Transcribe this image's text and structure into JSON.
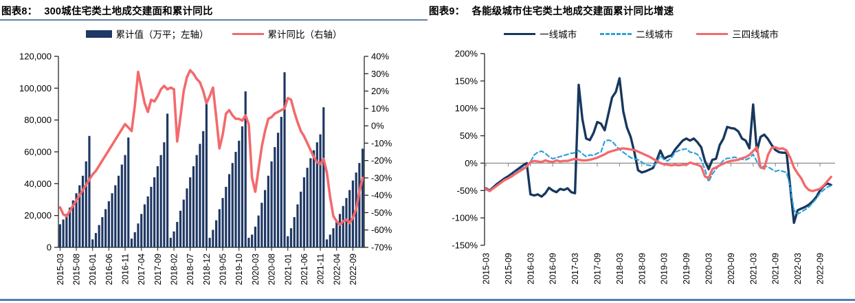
{
  "left_panel": {
    "tag": "图表8：",
    "title": "300城住宅类土地成交建面和累计同比",
    "legend": {
      "bars": "累计值（万平；左轴）",
      "line": "累计同比（右轴）"
    }
  },
  "right_panel": {
    "tag": "图表9：",
    "title": "各能级城市住宅类土地成交建面累计同比增速",
    "legend": {
      "tier1": "一线城市",
      "tier2": "二线城市",
      "tier34": "三四线城市"
    }
  },
  "colors": {
    "navy": "#1f3864",
    "navy_line": "#17375e",
    "red": "#f4696c",
    "cyan_dashed": "#2da0da",
    "axis": "#262626",
    "zero_line": "#7f7f7f",
    "header_rule": "#5d82a8",
    "bottom_rule": "#4a7ebb"
  },
  "chart_data": [
    {
      "type": "bar",
      "title": "300城住宅类土地成交建面和累计同比",
      "legend_position": "top",
      "grid": false,
      "x": [
        "2015-03",
        "2015-04",
        "2015-05",
        "2015-06",
        "2015-07",
        "2015-08",
        "2015-09",
        "2015-10",
        "2015-11",
        "2015-12",
        "2016-01",
        "2016-02",
        "2016-03",
        "2016-04",
        "2016-05",
        "2016-06",
        "2016-07",
        "2016-08",
        "2016-09",
        "2016-10",
        "2016-11",
        "2016-12",
        "2017-01",
        "2017-02",
        "2017-03",
        "2017-04",
        "2017-05",
        "2017-06",
        "2017-07",
        "2017-08",
        "2017-09",
        "2017-10",
        "2017-11",
        "2017-12",
        "2018-01",
        "2018-02",
        "2018-03",
        "2018-04",
        "2018-05",
        "2018-06",
        "2018-07",
        "2018-08",
        "2018-09",
        "2018-10",
        "2018-11",
        "2018-12",
        "2019-01",
        "2019-02",
        "2019-03",
        "2019-04",
        "2019-05",
        "2019-06",
        "2019-07",
        "2019-08",
        "2019-09",
        "2019-10",
        "2019-11",
        "2019-12",
        "2020-01",
        "2020-02",
        "2020-03",
        "2020-04",
        "2020-05",
        "2020-06",
        "2020-07",
        "2020-08",
        "2020-09",
        "2020-10",
        "2020-11",
        "2020-12",
        "2021-01",
        "2021-02",
        "2021-03",
        "2021-04",
        "2021-05",
        "2021-06",
        "2021-07",
        "2021-08",
        "2021-09",
        "2021-10",
        "2021-11",
        "2021-12",
        "2022-01",
        "2022-02",
        "2022-03",
        "2022-04",
        "2022-05",
        "2022-06",
        "2022-07",
        "2022-08",
        "2022-09",
        "2022-10",
        "2022-11",
        "2022-12"
      ],
      "x_tick_labels": [
        "2015-03",
        "2015-08",
        "2016-01",
        "2016-06",
        "2016-11",
        "2017-04",
        "2017-09",
        "2018-02",
        "2018-07",
        "2018-12",
        "2019-05",
        "2019-10",
        "2020-03",
        "2020-08",
        "2021-01",
        "2021-06",
        "2021-11",
        "2022-04",
        "2022-09"
      ],
      "x_tick_every": 5,
      "left_axis": {
        "min": 0,
        "max": 120000,
        "step": 20000,
        "tick_labels": [
          "0",
          "20,000",
          "40,000",
          "60,000",
          "80,000",
          "100,000",
          "120,000"
        ]
      },
      "right_axis": {
        "min": -70,
        "max": 40,
        "step": 10,
        "unit": "%",
        "tick_labels": [
          "-70%",
          "-60%",
          "-50%",
          "-40%",
          "-30%",
          "-20%",
          "-10%",
          "0%",
          "10%",
          "20%",
          "30%",
          "40%"
        ]
      },
      "series": [
        {
          "name": "累计值（万平；左轴）",
          "kind": "bar",
          "axis": "left",
          "color": "#1f3864",
          "values": [
            14500,
            17500,
            21000,
            25000,
            29500,
            34000,
            39000,
            45000,
            54000,
            70000,
            5000,
            9000,
            14000,
            19000,
            24000,
            29000,
            34000,
            39000,
            45000,
            52000,
            58000,
            69000,
            5500,
            9500,
            15000,
            21000,
            27000,
            32000,
            38000,
            44000,
            51000,
            58000,
            66000,
            84000,
            6000,
            10000,
            16000,
            23000,
            30000,
            37000,
            44000,
            51000,
            58000,
            65000,
            73000,
            92000,
            6000,
            11000,
            17000,
            24000,
            31000,
            38000,
            46000,
            53000,
            60000,
            67000,
            76000,
            98000,
            6000,
            8000,
            13000,
            20000,
            28000,
            36000,
            45000,
            54000,
            63000,
            72000,
            82000,
            110000,
            7000,
            12000,
            19000,
            27000,
            35000,
            44000,
            50000,
            56000,
            61000,
            66000,
            71000,
            88000,
            5000,
            8000,
            12000,
            16000,
            21000,
            26000,
            31000,
            36000,
            42000,
            47000,
            53000,
            62000
          ]
        },
        {
          "name": "累计同比（右轴）",
          "kind": "line",
          "axis": "right",
          "color": "#f4696c",
          "values": [
            -47,
            -51,
            -52,
            -49,
            -46,
            -43,
            -40,
            -37,
            -34,
            -31,
            -28,
            -26,
            -23,
            -20,
            -17,
            -14,
            -11,
            -8,
            -5,
            -2,
            1,
            -1,
            -3,
            12,
            31,
            22,
            13,
            8,
            15,
            14,
            17,
            21,
            23,
            21,
            22,
            21,
            -9,
            5,
            20,
            28,
            32,
            30,
            27,
            25,
            20,
            13,
            17,
            22,
            5,
            -13,
            -5,
            7,
            9,
            6,
            4,
            4,
            3,
            6,
            1,
            -30,
            -38,
            -25,
            -12,
            -3,
            4,
            5,
            7,
            8,
            9,
            10,
            16,
            15,
            8,
            2,
            -3,
            -6,
            -10,
            -14,
            -18,
            -21,
            -22,
            -19,
            -27,
            -41,
            -52,
            -55,
            -57,
            -55,
            -54,
            -56,
            -53,
            -48,
            -38,
            -30
          ]
        }
      ]
    },
    {
      "type": "line",
      "title": "各能级城市住宅类土地成交建面累计同比增速",
      "legend_position": "top",
      "grid": false,
      "x": [
        "2015-03",
        "2015-04",
        "2015-05",
        "2015-06",
        "2015-07",
        "2015-08",
        "2015-09",
        "2015-10",
        "2015-11",
        "2015-12",
        "2016-01",
        "2016-02",
        "2016-03",
        "2016-04",
        "2016-05",
        "2016-06",
        "2016-07",
        "2016-08",
        "2016-09",
        "2016-10",
        "2016-11",
        "2016-12",
        "2017-01",
        "2017-02",
        "2017-03",
        "2017-04",
        "2017-05",
        "2017-06",
        "2017-07",
        "2017-08",
        "2017-09",
        "2017-10",
        "2017-11",
        "2017-12",
        "2018-01",
        "2018-02",
        "2018-03",
        "2018-04",
        "2018-05",
        "2018-06",
        "2018-07",
        "2018-08",
        "2018-09",
        "2018-10",
        "2018-11",
        "2018-12",
        "2019-01",
        "2019-02",
        "2019-03",
        "2019-04",
        "2019-05",
        "2019-06",
        "2019-07",
        "2019-08",
        "2019-09",
        "2019-10",
        "2019-11",
        "2019-12",
        "2020-01",
        "2020-02",
        "2020-03",
        "2020-04",
        "2020-05",
        "2020-06",
        "2020-07",
        "2020-08",
        "2020-09",
        "2020-10",
        "2020-11",
        "2020-12",
        "2021-01",
        "2021-02",
        "2021-03",
        "2021-04",
        "2021-05",
        "2021-06",
        "2021-07",
        "2021-08",
        "2021-09",
        "2021-10",
        "2021-11",
        "2021-12",
        "2022-01",
        "2022-02",
        "2022-03",
        "2022-04",
        "2022-05",
        "2022-06",
        "2022-07",
        "2022-08",
        "2022-09",
        "2022-10",
        "2022-11",
        "2022-12"
      ],
      "x_tick_labels": [
        "2015-03",
        "2015-09",
        "2016-03",
        "2016-09",
        "2017-03",
        "2017-09",
        "2018-03",
        "2018-09",
        "2019-03",
        "2019-09",
        "2020-03",
        "2020-09",
        "2021-03",
        "2021-09",
        "2022-03",
        "2022-09"
      ],
      "x_tick_every": 6,
      "y_axis": {
        "min": -150,
        "max": 200,
        "step": 50,
        "unit": "%",
        "tick_labels": [
          "-150%",
          "-100%",
          "-50%",
          "0%",
          "50%",
          "100%",
          "150%",
          "200%"
        ]
      },
      "series": [
        {
          "name": "一线城市",
          "kind": "line",
          "dash": "solid",
          "color": "#17375e",
          "width": 3.4,
          "values": [
            -46,
            -50,
            -44,
            -38,
            -33,
            -28,
            -24,
            -19,
            -14,
            -9,
            -4,
            0,
            -57,
            -59,
            -57,
            -61,
            -55,
            -45,
            -50,
            -53,
            -47,
            -49,
            -46,
            -53,
            -55,
            143,
            80,
            45,
            42,
            55,
            75,
            72,
            60,
            90,
            120,
            130,
            155,
            95,
            65,
            48,
            20,
            -13,
            -17,
            -15,
            -12,
            -9,
            5,
            23,
            8,
            12,
            14,
            25,
            33,
            41,
            45,
            41,
            45,
            38,
            29,
            4,
            -11,
            6,
            8,
            33,
            45,
            66,
            64,
            63,
            58,
            45,
            41,
            27,
            107,
            22,
            48,
            52,
            44,
            33,
            24,
            20,
            19,
            19,
            -44,
            -109,
            -86,
            -83,
            -80,
            -76,
            -70,
            -62,
            -50,
            -42,
            -37,
            -40
          ]
        },
        {
          "name": "二线城市",
          "kind": "line",
          "dash": "dashed",
          "color": "#2da0da",
          "width": 2.2,
          "values": [
            -49,
            -51,
            -46,
            -41,
            -36,
            -31,
            -27,
            -22,
            -17,
            -13,
            -9,
            -4,
            2,
            15,
            20,
            22,
            18,
            12,
            8,
            10,
            12,
            14,
            16,
            18,
            19,
            23,
            17,
            12,
            15,
            14,
            18,
            20,
            40,
            42,
            40,
            32,
            25,
            20,
            15,
            10,
            8,
            6,
            2,
            -3,
            -4,
            -5,
            0,
            14,
            6,
            4,
            10,
            20,
            23,
            25,
            26,
            20,
            19,
            16,
            6,
            -11,
            -34,
            -20,
            -11,
            -3,
            5,
            9,
            9,
            11,
            9,
            7,
            6,
            9,
            16,
            3,
            -9,
            -5,
            -7,
            -11,
            -15,
            -13,
            -15,
            -17,
            -44,
            -86,
            -93,
            -89,
            -85,
            -80,
            -73,
            -65,
            -55,
            -49,
            -44,
            -41
          ]
        },
        {
          "name": "三四线城市",
          "kind": "line",
          "dash": "solid",
          "color": "#f4696c",
          "width": 3.4,
          "values": [
            -47,
            -51,
            -46,
            -41,
            -36,
            -31,
            -28,
            -24,
            -19,
            -15,
            -11,
            -6,
            2,
            4,
            3,
            2,
            5,
            3,
            2,
            5,
            3,
            4,
            4,
            6,
            8,
            6,
            5,
            5,
            6,
            8,
            10,
            13,
            16,
            20,
            22,
            24,
            26,
            27,
            26,
            25,
            24,
            21,
            18,
            15,
            12,
            8,
            4,
            0,
            -2,
            -3,
            -4,
            -3,
            -4,
            -3,
            -3,
            1,
            -1,
            -3,
            -6,
            -24,
            -28,
            -11,
            -8,
            -4,
            -1,
            2,
            4,
            5,
            6,
            9,
            11,
            15,
            22,
            29,
            -8,
            -10,
            15,
            28,
            29,
            26,
            27,
            23,
            10,
            -8,
            -19,
            -28,
            -42,
            -49,
            -51,
            -49,
            -47,
            -41,
            -33,
            -25
          ]
        }
      ]
    }
  ]
}
